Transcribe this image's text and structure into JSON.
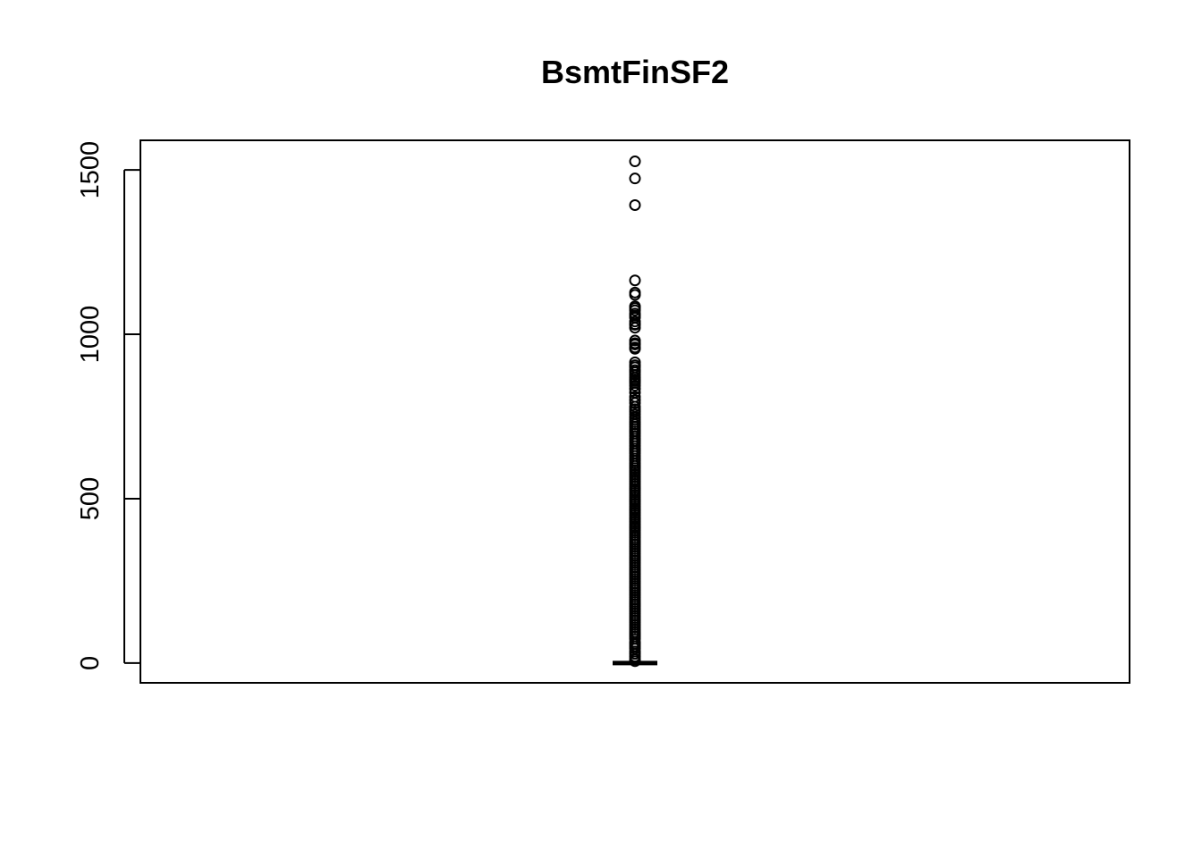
{
  "chart_data": {
    "type": "boxplot",
    "title": "BsmtFinSF2",
    "xlabel": "",
    "ylabel": "",
    "ylim": [
      -60,
      1590
    ],
    "yticks": [
      0,
      500,
      1000,
      1500
    ],
    "ytick_labels": [
      "0",
      "500",
      "1000",
      "1500"
    ],
    "grid": false,
    "box": {
      "min": 0,
      "q1": 0,
      "median": 0,
      "q3": 0,
      "max": 0
    },
    "outliers": [
      1526,
      1474,
      1393,
      1164,
      1127,
      1120,
      1085,
      1080,
      1073,
      1063,
      1057,
      1051,
      1039,
      1031,
      1029,
      1020,
      981,
      973,
      969,
      960,
      956,
      915,
      906,
      900,
      891,
      885,
      877,
      869,
      863,
      858,
      852,
      844,
      834,
      823,
      810,
      800,
      791,
      780,
      772,
      765,
      757,
      748,
      741,
      733,
      726,
      719,
      712,
      705,
      698,
      690,
      682,
      675,
      668,
      660,
      652,
      645,
      638,
      630,
      622,
      615,
      607,
      600,
      593,
      586,
      580,
      573,
      566,
      559,
      552,
      545,
      538,
      531,
      525,
      518,
      511,
      504,
      497,
      491,
      484,
      477,
      470,
      464,
      457,
      450,
      443,
      437,
      430,
      423,
      416,
      410,
      403,
      396,
      389,
      382,
      375,
      368,
      361,
      354,
      347,
      340,
      333,
      326,
      319,
      312,
      305,
      298,
      291,
      284,
      277,
      270,
      263,
      256,
      249,
      242,
      235,
      228,
      221,
      214,
      207,
      200,
      193,
      186,
      179,
      172,
      165,
      158,
      151,
      144,
      137,
      130,
      123,
      116,
      109,
      102,
      95,
      88,
      81,
      74,
      64,
      58,
      51,
      44,
      35,
      28,
      20,
      12,
      6
    ]
  },
  "colors": {
    "background": "#ffffff",
    "foreground": "#000000"
  }
}
